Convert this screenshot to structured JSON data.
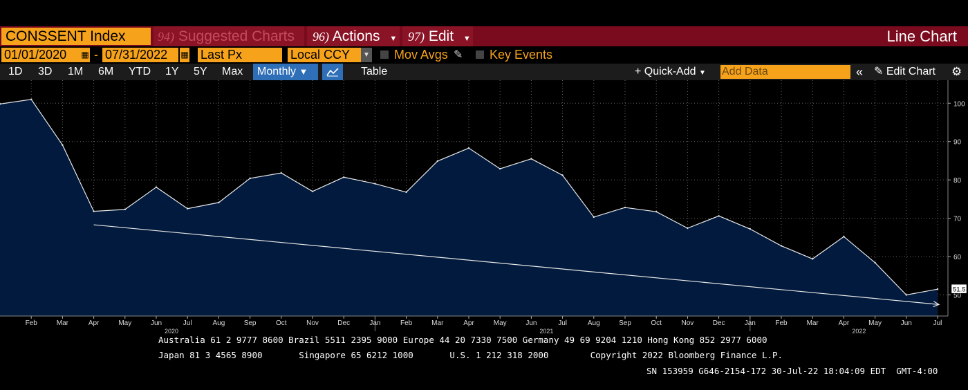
{
  "header": {
    "ticker": "CONSSENT Index",
    "suggested": {
      "num": "94)",
      "label": "Suggested Charts"
    },
    "actions": {
      "num": "96)",
      "label": "Actions"
    },
    "edit": {
      "num": "97)",
      "label": "Edit"
    },
    "chart_title": "Line Chart"
  },
  "controls": {
    "start_date": "01/01/2020",
    "end_date": "07/31/2022",
    "dash": "-",
    "field": "Last Px",
    "currency": "Local CCY",
    "mov_avgs": "Mov Avgs",
    "key_events": "Key Events"
  },
  "toolbar": {
    "periods": [
      "1D",
      "3D",
      "1M",
      "6M",
      "YTD",
      "1Y",
      "5Y",
      "Max"
    ],
    "frequency": "Monthly",
    "table": "Table",
    "quick_add": "Quick-Add",
    "add_data_placeholder": "Add Data",
    "edit_chart": "Edit Chart"
  },
  "chart_data": {
    "type": "area",
    "x": [
      "Jan 2020",
      "Feb 2020",
      "Mar 2020",
      "Apr 2020",
      "May 2020",
      "Jun 2020",
      "Jul 2020",
      "Aug 2020",
      "Sep 2020",
      "Oct 2020",
      "Nov 2020",
      "Dec 2020",
      "Jan 2021",
      "Feb 2021",
      "Mar 2021",
      "Apr 2021",
      "May 2021",
      "Jun 2021",
      "Jul 2021",
      "Aug 2021",
      "Sep 2021",
      "Oct 2021",
      "Nov 2021",
      "Dec 2021",
      "Jan 2022",
      "Feb 2022",
      "Mar 2022",
      "Apr 2022",
      "May 2022",
      "Jun 2022",
      "Jul 2022"
    ],
    "values": [
      99.8,
      101.0,
      89.1,
      71.8,
      72.3,
      78.1,
      72.5,
      74.1,
      80.4,
      81.8,
      77.0,
      80.7,
      79.0,
      76.8,
      84.9,
      88.3,
      82.9,
      85.5,
      81.2,
      70.3,
      72.8,
      71.7,
      67.4,
      70.6,
      67.2,
      62.8,
      59.4,
      65.2,
      58.4,
      50.0,
      51.5
    ],
    "trendline": {
      "x_start": "Apr 2020",
      "y_start": 68.3,
      "x_end": "Jul 2022",
      "y_end": 47.5
    },
    "last_value_label": "51.5",
    "y_ticks": [
      50,
      60,
      70,
      80,
      90,
      100
    ],
    "ylim": [
      44.5,
      106
    ],
    "x_tick_labels": [
      "Feb",
      "Mar",
      "Apr",
      "May",
      "Jun",
      "Jul",
      "Aug",
      "Sep",
      "Oct",
      "Nov",
      "Dec",
      "Jan",
      "Feb",
      "Mar",
      "Apr",
      "May",
      "Jun",
      "Jul",
      "Aug",
      "Sep",
      "Oct",
      "Nov",
      "Dec",
      "Jan",
      "Feb",
      "Mar",
      "Apr",
      "May",
      "Jun",
      "Jul"
    ],
    "year_labels": [
      {
        "label": "2020",
        "under": "Jun 2020"
      },
      {
        "label": "2021",
        "under": "Jun 2021"
      },
      {
        "label": "2022",
        "under": "Apr 2022"
      }
    ],
    "grid": true,
    "colors": {
      "fill": "#021a3d",
      "line": "#e8e8e8",
      "grid": "#666666",
      "background": "#000000"
    }
  },
  "footer": {
    "line1": "Australia 61 2 9777 8600 Brazil 5511 2395 9000 Europe 44 20 7330 7500 Germany 49 69 9204 1210 Hong Kong 852 2977 6000",
    "line2": "Japan 81 3 4565 8900       Singapore 65 6212 1000       U.S. 1 212 318 2000        Copyright 2022 Bloomberg Finance L.P.",
    "line3": "SN 153959 G646-2154-172 30-Jul-22 18:04:09 EDT  GMT-4:00"
  },
  "colors": {
    "accent_orange": "#f6a21b",
    "bar_red": "#7a0a1d",
    "active_blue": "#2f6fb8"
  }
}
